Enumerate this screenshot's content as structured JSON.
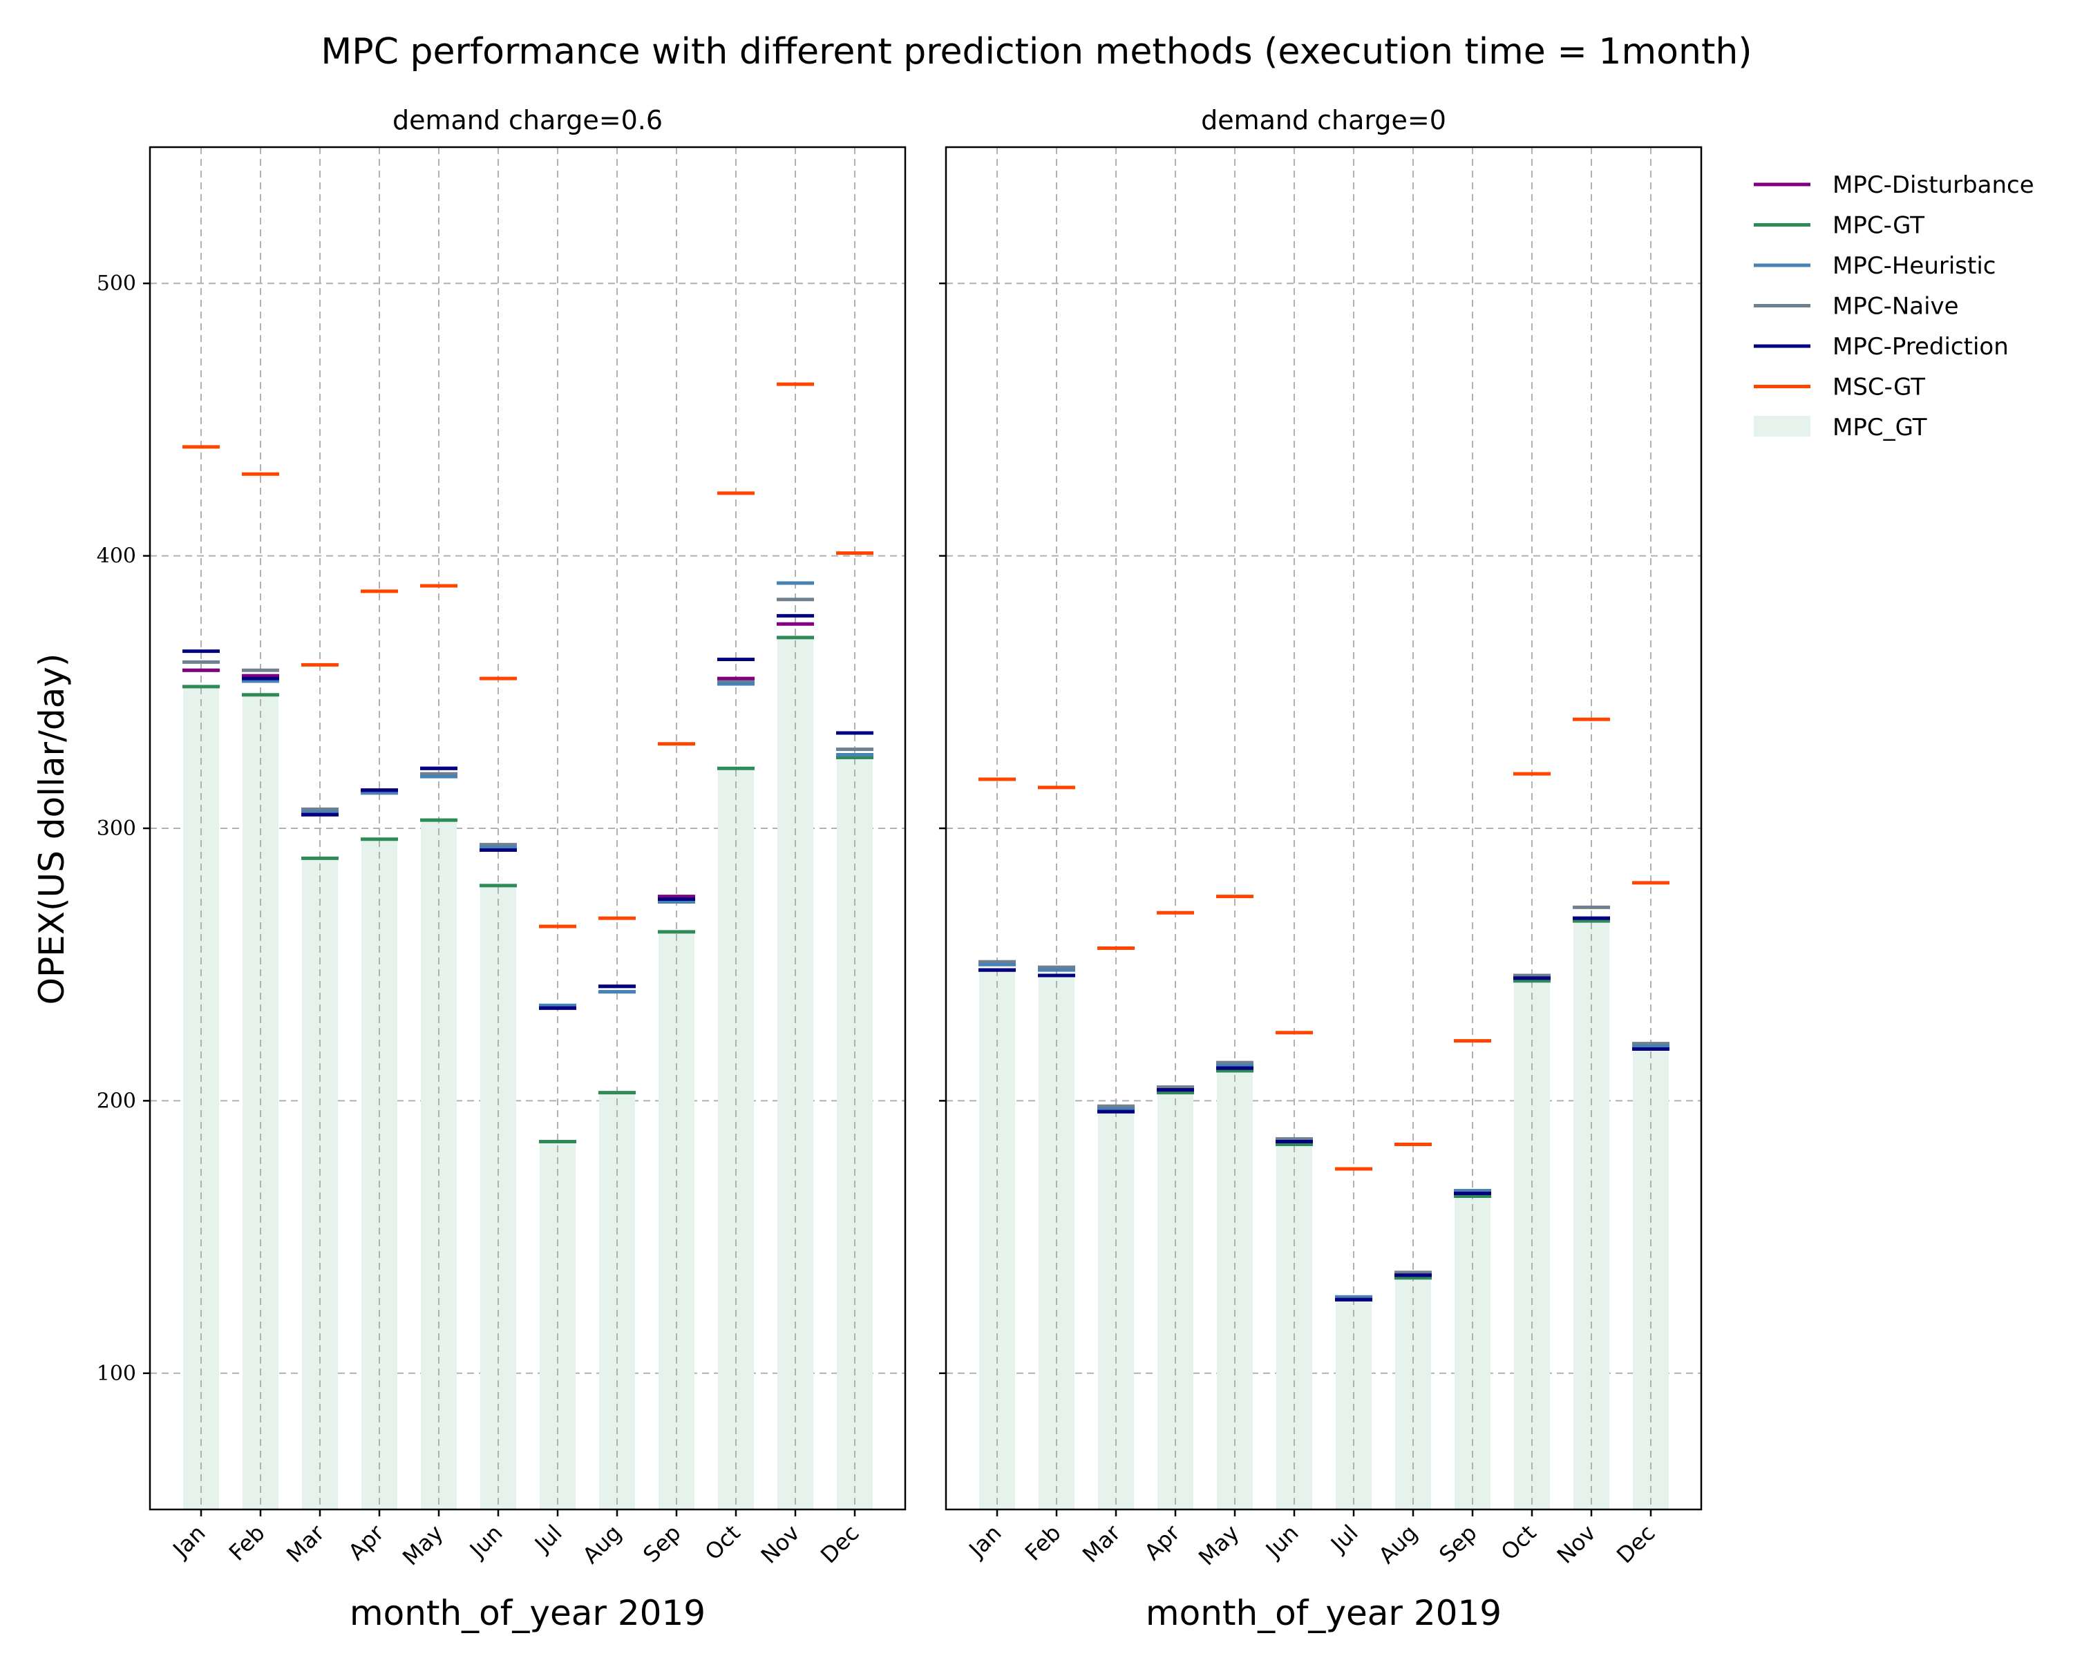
{
  "chart_data": {
    "type": "bar",
    "title": "MPC performance with different prediction methods (execution time = 1month)",
    "ylabel": "OPEX(US dollar/day)",
    "ylim": [
      50,
      550
    ],
    "yticks": [
      100,
      200,
      300,
      400,
      500
    ],
    "grid": true,
    "legend_position": "outside-right",
    "colors": {
      "MPC-Disturbance": "#800080",
      "MPC-GT": "#2e8b57",
      "MPC-Heuristic": "#4682b4",
      "MPC-Naive": "#708090",
      "MPC-Prediction": "#000080",
      "MSC-GT": "#ff4500",
      "MPC_GT_bar": "#e6f2ec"
    },
    "legend": [
      "MPC-Disturbance",
      "MPC-GT",
      "MPC-Heuristic",
      "MPC-Naive",
      "MPC-Prediction",
      "MSC-GT",
      "MPC_GT"
    ],
    "panels": [
      {
        "title": "demand charge=0.6",
        "xlabel": "month_of_year 2019",
        "categories": [
          "Jan",
          "Feb",
          "Mar",
          "Apr",
          "May",
          "Jun",
          "Jul",
          "Aug",
          "Sep",
          "Oct",
          "Nov",
          "Dec"
        ],
        "bar_series": {
          "name": "MPC_GT",
          "values": [
            352,
            349,
            289,
            296,
            303,
            279,
            185,
            203,
            262,
            322,
            370,
            326
          ]
        },
        "series": [
          {
            "name": "MPC-GT",
            "values": [
              352,
              349,
              289,
              296,
              303,
              279,
              185,
              203,
              262,
              322,
              370,
              326
            ]
          },
          {
            "name": "MPC-Naive",
            "values": [
              361,
              358,
              307,
              313,
              320,
              294,
              235,
              240,
              274,
              354,
              384,
              329
            ]
          },
          {
            "name": "MPC-Heuristic",
            "values": [
              358,
              354,
              306,
              313,
              319,
              293,
              235,
              240,
              273,
              353,
              390,
              327
            ]
          },
          {
            "name": "MPC-Disturbance",
            "values": [
              358,
              356,
              305,
              314,
              322,
              292,
              234,
              242,
              275,
              355,
              375,
              335
            ]
          },
          {
            "name": "MPC-Prediction",
            "values": [
              365,
              355,
              305,
              314,
              322,
              292,
              234,
              242,
              274,
              362,
              378,
              335
            ]
          },
          {
            "name": "MSC-GT",
            "values": [
              440,
              430,
              360,
              387,
              389,
              355,
              264,
              267,
              331,
              423,
              463,
              401
            ]
          }
        ]
      },
      {
        "title": "demand charge=0",
        "xlabel": "month_of_year 2019",
        "categories": [
          "Jan",
          "Feb",
          "Mar",
          "Apr",
          "May",
          "Jun",
          "Jul",
          "Aug",
          "Sep",
          "Oct",
          "Nov",
          "Dec"
        ],
        "bar_series": {
          "name": "MPC_GT",
          "values": [
            248,
            246,
            196,
            203,
            211,
            184,
            127,
            135,
            165,
            244,
            266,
            219
          ]
        },
        "series": [
          {
            "name": "MPC-GT",
            "values": [
              248,
              246,
              196,
              203,
              211,
              184,
              127,
              135,
              165,
              244,
              266,
              219
            ]
          },
          {
            "name": "MPC-Naive",
            "values": [
              251,
              249,
              198,
              205,
              214,
              186,
              128,
              137,
              167,
              246,
              271,
              221
            ]
          },
          {
            "name": "MPC-Heuristic",
            "values": [
              250,
              248,
              197,
              204,
              213,
              185,
              128,
              136,
              167,
              245,
              267,
              220
            ]
          },
          {
            "name": "MPC-Disturbance",
            "values": [
              248,
              246,
              196,
              204,
              212,
              185,
              127,
              136,
              166,
              245,
              267,
              219
            ]
          },
          {
            "name": "MPC-Prediction",
            "values": [
              248,
              246,
              196,
              204,
              212,
              185,
              127,
              136,
              166,
              245,
              267,
              219
            ]
          },
          {
            "name": "MSC-GT",
            "values": [
              318,
              315,
              256,
              269,
              275,
              225,
              175,
              184,
              222,
              320,
              340,
              280
            ]
          }
        ]
      }
    ]
  }
}
